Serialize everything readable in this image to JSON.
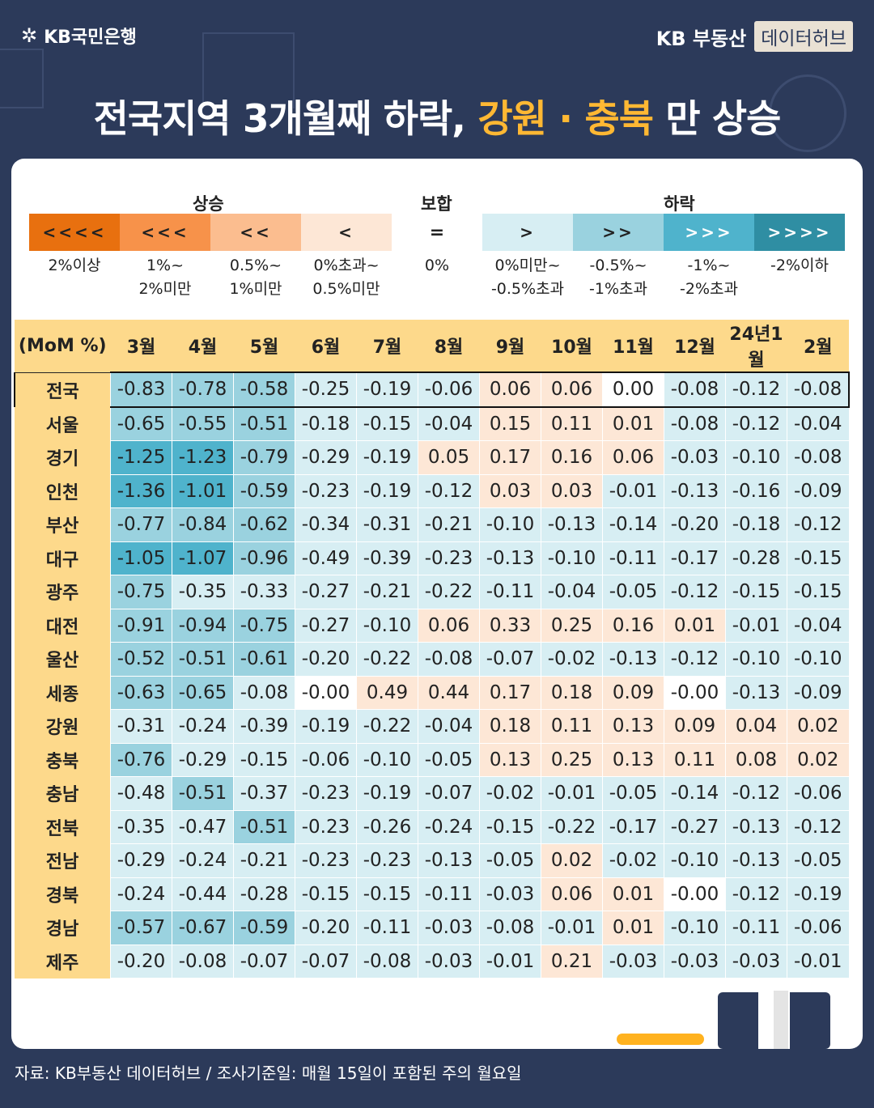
{
  "brand": {
    "bank": "KB국민은행",
    "realestate": "KB 부동산",
    "hub": "데이터허브"
  },
  "title": {
    "part1": "전국지역 3개월째 하락, ",
    "part2": "강원 · 충북",
    "part3": " 만 상승"
  },
  "legend": {
    "headers": {
      "up": "상승",
      "flat": "보합",
      "down": "하락"
    },
    "items": [
      {
        "symbol": "<<<<",
        "label1": "2%이상",
        "label2": "",
        "color": "#e8700f",
        "text": "#222"
      },
      {
        "symbol": "<<<",
        "label1": "1%~",
        "label2": "2%미만",
        "color": "#f7924a",
        "text": "#222"
      },
      {
        "symbol": "<<",
        "label1": "0.5%~",
        "label2": "1%미만",
        "color": "#fbbd8f",
        "text": "#222"
      },
      {
        "symbol": "<",
        "label1": "0%초과~",
        "label2": "0.5%미만",
        "color": "#fde7d6",
        "text": "#222"
      },
      {
        "symbol": "=",
        "label1": "0%",
        "label2": "",
        "color": "#ffffff",
        "text": "#222"
      },
      {
        "symbol": ">",
        "label1": "0%미만~",
        "label2": "-0.5%초과",
        "color": "#d7eef3",
        "text": "#222"
      },
      {
        "symbol": ">>",
        "label1": "-0.5%~",
        "label2": "-1%초과",
        "color": "#9ad2df",
        "text": "#222"
      },
      {
        "symbol": ">>>",
        "label1": "-1%~",
        "label2": "-2%초과",
        "color": "#4fb3cc",
        "text": "#ffffff"
      },
      {
        "symbol": ">>>>",
        "label1": "-2%이하",
        "label2": "",
        "color": "#2f8ea3",
        "text": "#ffffff"
      }
    ]
  },
  "chart_data": {
    "type": "table",
    "row_header_label": "(MoM %)",
    "columns": [
      "3월",
      "4월",
      "5월",
      "6월",
      "7월",
      "8월",
      "9월",
      "10월",
      "11월",
      "12월",
      "24년1월",
      "2월"
    ],
    "rows": [
      {
        "region": "전국",
        "values": [
          "-0.83",
          "-0.78",
          "-0.58",
          "-0.25",
          "-0.19",
          "-0.06",
          "0.06",
          "0.06",
          "0.00",
          "-0.08",
          "-0.12",
          "-0.08"
        ]
      },
      {
        "region": "서울",
        "values": [
          "-0.65",
          "-0.55",
          "-0.51",
          "-0.18",
          "-0.15",
          "-0.04",
          "0.15",
          "0.11",
          "0.01",
          "-0.08",
          "-0.12",
          "-0.04"
        ]
      },
      {
        "region": "경기",
        "values": [
          "-1.25",
          "-1.23",
          "-0.79",
          "-0.29",
          "-0.19",
          "0.05",
          "0.17",
          "0.16",
          "0.06",
          "-0.03",
          "-0.10",
          "-0.08"
        ]
      },
      {
        "region": "인천",
        "values": [
          "-1.36",
          "-1.01",
          "-0.59",
          "-0.23",
          "-0.19",
          "-0.12",
          "0.03",
          "0.03",
          "-0.01",
          "-0.13",
          "-0.16",
          "-0.09"
        ]
      },
      {
        "region": "부산",
        "values": [
          "-0.77",
          "-0.84",
          "-0.62",
          "-0.34",
          "-0.31",
          "-0.21",
          "-0.10",
          "-0.13",
          "-0.14",
          "-0.20",
          "-0.18",
          "-0.12"
        ]
      },
      {
        "region": "대구",
        "values": [
          "-1.05",
          "-1.07",
          "-0.96",
          "-0.49",
          "-0.39",
          "-0.23",
          "-0.13",
          "-0.10",
          "-0.11",
          "-0.17",
          "-0.28",
          "-0.15"
        ]
      },
      {
        "region": "광주",
        "values": [
          "-0.75",
          "-0.35",
          "-0.33",
          "-0.27",
          "-0.21",
          "-0.22",
          "-0.11",
          "-0.04",
          "-0.05",
          "-0.12",
          "-0.15",
          "-0.15"
        ]
      },
      {
        "region": "대전",
        "values": [
          "-0.91",
          "-0.94",
          "-0.75",
          "-0.27",
          "-0.10",
          "0.06",
          "0.33",
          "0.25",
          "0.16",
          "0.01",
          "-0.01",
          "-0.04"
        ]
      },
      {
        "region": "울산",
        "values": [
          "-0.52",
          "-0.51",
          "-0.61",
          "-0.20",
          "-0.22",
          "-0.08",
          "-0.07",
          "-0.02",
          "-0.13",
          "-0.12",
          "-0.10",
          "-0.10"
        ]
      },
      {
        "region": "세종",
        "values": [
          "-0.63",
          "-0.65",
          "-0.08",
          "-0.00",
          "0.49",
          "0.44",
          "0.17",
          "0.18",
          "0.09",
          "-0.00",
          "-0.13",
          "-0.09"
        ]
      },
      {
        "region": "강원",
        "values": [
          "-0.31",
          "-0.24",
          "-0.39",
          "-0.19",
          "-0.22",
          "-0.04",
          "0.18",
          "0.11",
          "0.13",
          "0.09",
          "0.04",
          "0.02"
        ]
      },
      {
        "region": "충북",
        "values": [
          "-0.76",
          "-0.29",
          "-0.15",
          "-0.06",
          "-0.10",
          "-0.05",
          "0.13",
          "0.25",
          "0.13",
          "0.11",
          "0.08",
          "0.02"
        ]
      },
      {
        "region": "충남",
        "values": [
          "-0.48",
          "-0.51",
          "-0.37",
          "-0.23",
          "-0.19",
          "-0.07",
          "-0.02",
          "-0.01",
          "-0.05",
          "-0.14",
          "-0.12",
          "-0.06"
        ]
      },
      {
        "region": "전북",
        "values": [
          "-0.35",
          "-0.47",
          "-0.51",
          "-0.23",
          "-0.26",
          "-0.24",
          "-0.15",
          "-0.22",
          "-0.17",
          "-0.27",
          "-0.13",
          "-0.12"
        ]
      },
      {
        "region": "전남",
        "values": [
          "-0.29",
          "-0.24",
          "-0.21",
          "-0.23",
          "-0.23",
          "-0.13",
          "-0.05",
          "0.02",
          "-0.02",
          "-0.10",
          "-0.13",
          "-0.05"
        ]
      },
      {
        "region": "경북",
        "values": [
          "-0.24",
          "-0.44",
          "-0.28",
          "-0.15",
          "-0.15",
          "-0.11",
          "-0.03",
          "0.06",
          "0.01",
          "-0.00",
          "-0.12",
          "-0.19"
        ]
      },
      {
        "region": "경남",
        "values": [
          "-0.57",
          "-0.67",
          "-0.59",
          "-0.20",
          "-0.11",
          "-0.03",
          "-0.08",
          "-0.01",
          "0.01",
          "-0.10",
          "-0.11",
          "-0.06"
        ]
      },
      {
        "region": "제주",
        "values": [
          "-0.20",
          "-0.08",
          "-0.07",
          "-0.07",
          "-0.08",
          "-0.03",
          "-0.01",
          "0.21",
          "-0.03",
          "-0.03",
          "-0.03",
          "-0.01"
        ]
      }
    ]
  },
  "source": "자료: KB부동산 데이터허브 / 조사기준일: 매월 15일이 포함된 주의 월요일"
}
